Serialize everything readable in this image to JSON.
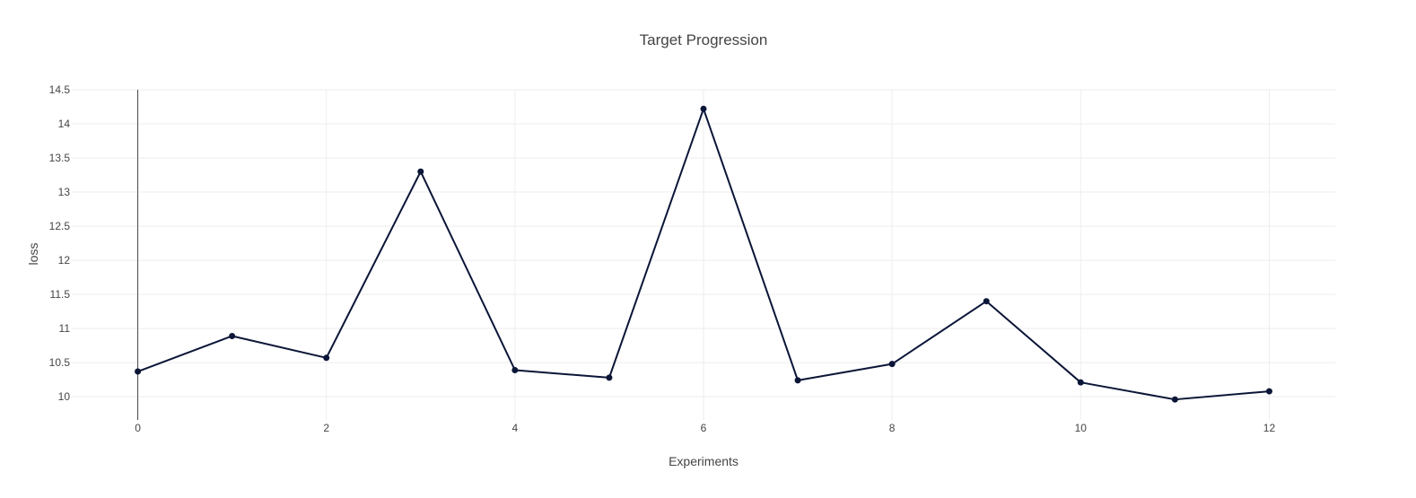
{
  "chart_data": {
    "type": "line",
    "title": "Target Progression",
    "xlabel": "Experiments",
    "ylabel": "loss",
    "x": [
      0,
      1,
      2,
      3,
      4,
      5,
      6,
      7,
      8,
      9,
      10,
      11,
      12
    ],
    "series": [
      {
        "values": [
          10.37,
          10.89,
          10.57,
          13.3,
          10.39,
          10.28,
          14.22,
          10.24,
          10.48,
          11.4,
          10.21,
          9.96,
          10.08
        ],
        "color": "#0b1537"
      }
    ],
    "xlim": [
      -0.7,
      12.7
    ],
    "ylim": [
      9.66,
      14.5
    ],
    "xticks": [
      0,
      2,
      4,
      6,
      8,
      10,
      12
    ],
    "yticks": [
      10,
      10.5,
      11,
      11.5,
      12,
      12.5,
      13,
      13.5,
      14,
      14.5
    ],
    "ytick_labels": [
      "10",
      "10.5",
      "11",
      "11.5",
      "12",
      "12.5",
      "13",
      "13.5",
      "14",
      "14.5"
    ],
    "grid": true,
    "markers": true
  }
}
